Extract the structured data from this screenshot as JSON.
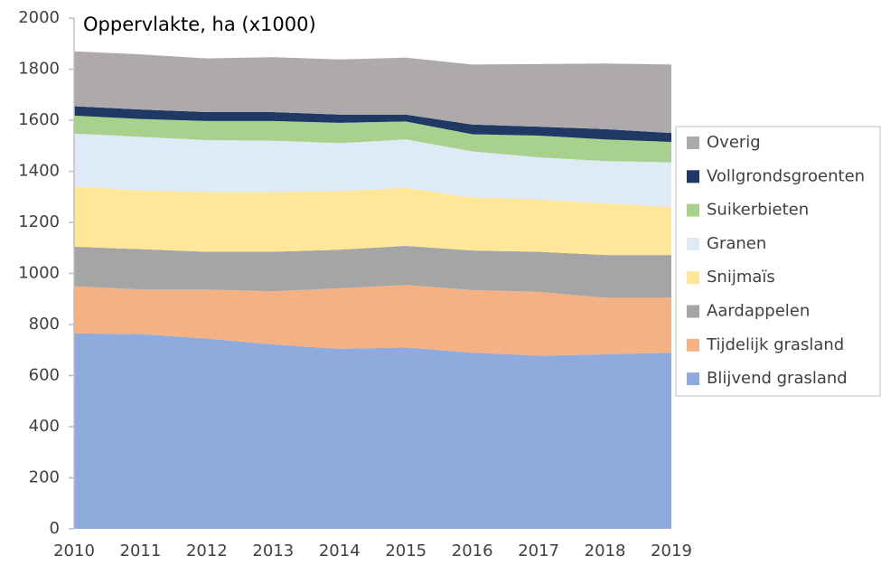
{
  "chart_data": {
    "type": "stacked_area",
    "title": "Oppervlakte, ha (x1000)",
    "x": [
      2010,
      2011,
      2012,
      2013,
      2014,
      2015,
      2016,
      2017,
      2018,
      2019
    ],
    "xlim": [
      2010,
      2019
    ],
    "xticks": [
      2010,
      2011,
      2012,
      2013,
      2014,
      2015,
      2016,
      2017,
      2018,
      2019
    ],
    "ylim": [
      0,
      2000
    ],
    "yticks": [
      0,
      200,
      400,
      600,
      800,
      1000,
      1200,
      1400,
      1600,
      1800,
      2000
    ],
    "legend": "right",
    "series": [
      {
        "name": "Blijvend grasland",
        "color": "#8faadc",
        "values": [
          765,
          763,
          745,
          722,
          705,
          710,
          690,
          678,
          683,
          690
        ]
      },
      {
        "name": "Tijdelijk grasland",
        "color": "#f4b183",
        "values": [
          185,
          174,
          192,
          208,
          237,
          245,
          245,
          250,
          222,
          215
        ]
      },
      {
        "name": "Aardappelen",
        "color": "#a5a5a5",
        "values": [
          155,
          158,
          148,
          155,
          151,
          153,
          155,
          157,
          167,
          167
        ]
      },
      {
        "name": "Snijmaïs",
        "color": "#ffe699",
        "values": [
          235,
          230,
          233,
          233,
          229,
          227,
          208,
          205,
          203,
          188
        ]
      },
      {
        "name": "Granen",
        "color": "#deebf7",
        "values": [
          208,
          210,
          204,
          202,
          188,
          190,
          180,
          165,
          165,
          175
        ]
      },
      {
        "name": "Suikerbieten",
        "color": "#a9d18e",
        "values": [
          70,
          70,
          75,
          77,
          80,
          70,
          67,
          85,
          85,
          80
        ]
      },
      {
        "name": "Vollgrondsgroenten",
        "color": "#203864",
        "values": [
          37,
          37,
          35,
          35,
          32,
          27,
          38,
          35,
          40,
          35
        ]
      },
      {
        "name": "Overig",
        "color": "#aeaaab",
        "values": [
          215,
          216,
          210,
          215,
          216,
          223,
          235,
          245,
          257,
          268
        ]
      }
    ]
  }
}
